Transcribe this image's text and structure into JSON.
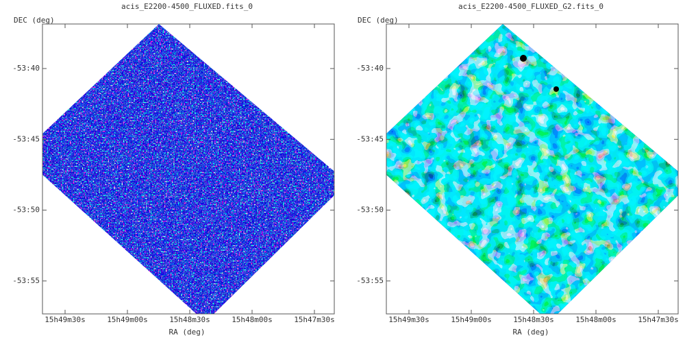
{
  "panels": [
    {
      "title": "acis_E2200-4500_FLUXED.fits_0",
      "ylabel": "DEC (deg)",
      "xlabel": "RA (deg)",
      "yticks": [
        "-53:40",
        "-53:45",
        "-53:50",
        "-53:55"
      ],
      "xticks": [
        "15h49m30s",
        "15h49m00s",
        "15h48m30s",
        "15h48m00s",
        "15h47m30s"
      ]
    },
    {
      "title": "acis_E2200-4500_FLUXED_G2.fits_0",
      "ylabel": "DEC (deg)",
      "xlabel": "RA (deg)",
      "yticks": [
        "-53:40",
        "-53:45",
        "-53:50",
        "-53:55"
      ],
      "xticks": [
        "15h49m30s",
        "15h49m00s",
        "15h48m30s",
        "15h48m00s",
        "15h47m30s"
      ]
    }
  ]
}
